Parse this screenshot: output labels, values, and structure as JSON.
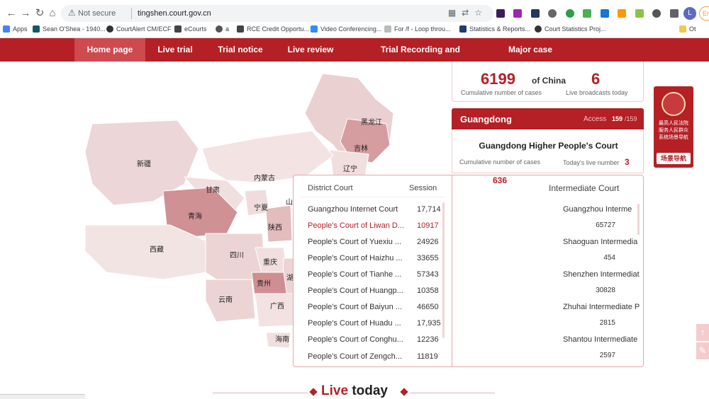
{
  "browser": {
    "security": "Not secure",
    "url": "tingshen.court.gov.cn",
    "avatar_letter": "L",
    "profile_label": "Err",
    "bookmarks": [
      "Apps",
      "Sean O'Shea - 1940...",
      "CourtAlert CM/ECF",
      "eCourts",
      "a",
      "RCE Credit Opportu...",
      "Video Conferencing...",
      "For /f - Loop throu...",
      "Statistics & Reports...",
      "Court Statistics Proj..."
    ],
    "other_bookmarks": "Ot"
  },
  "nav": {
    "items": [
      "Home page",
      "Live trial",
      "Trial notice",
      "Live review",
      "Trial Recording and Broadcasting",
      "Major case"
    ]
  },
  "map": {
    "provinces": [
      "黑龙江",
      "吉林",
      "辽宁",
      "新疆",
      "内蒙古",
      "甘肃",
      "宁夏",
      "山",
      "青海",
      "陕西",
      "西藏",
      "四川",
      "重庆",
      "湖",
      "贵州",
      "云南",
      "广西",
      "海南"
    ]
  },
  "stats": {
    "cumulative_cases": "6199",
    "country": "of China",
    "live_today": "6",
    "cumulative_caption": "Cumulative number of cases",
    "live_caption": "Live broadcasts today"
  },
  "province": {
    "name": "Guangdong",
    "access_label": "Access",
    "access_value": "159",
    "access_total": "/159",
    "higher_court": "Guangdong Higher People's Court",
    "cumulative_label": "Cumulative number of cases",
    "live_label": "Today's live number",
    "live_number": "3",
    "cumulative_number": "636"
  },
  "district": {
    "header_court": "District Court",
    "header_session": "Session",
    "rows": [
      {
        "name": "Guangzhou Internet Court",
        "session": "17,714"
      },
      {
        "name": "People's Court of Liwan D...",
        "session": "10917"
      },
      {
        "name": "People's Court of Yuexiu ...",
        "session": "24926"
      },
      {
        "name": "People's Court of Haizhu ...",
        "session": "33655"
      },
      {
        "name": "People's Court of Tianhe ...",
        "session": "57343"
      },
      {
        "name": "People's Court of Huangp...",
        "session": "10358"
      },
      {
        "name": "People's Court of Baiyun ...",
        "session": "46650"
      },
      {
        "name": "People's Court of Huadu ...",
        "session": "17,935"
      },
      {
        "name": "People's Court of Conghu...",
        "session": "12236"
      },
      {
        "name": "People's Court of Zengch...",
        "session": "11819"
      }
    ]
  },
  "intermediate": {
    "header": "Intermediate Court",
    "items": [
      {
        "name": "Guangzhou Interme",
        "value": "65727"
      },
      {
        "name": "Shaoguan Intermedia",
        "value": "454"
      },
      {
        "name": "Shenzhen Intermediat",
        "value": "30828"
      },
      {
        "name": "Zhuhai Intermediate P",
        "value": "2815"
      },
      {
        "name": "Shantou Intermediate",
        "value": "2597"
      }
    ]
  },
  "promo": {
    "text": "最高人民法院服务人民群众系统场景导航",
    "button": "场景导航"
  },
  "footer": {
    "live": "Live",
    "today": "today"
  }
}
